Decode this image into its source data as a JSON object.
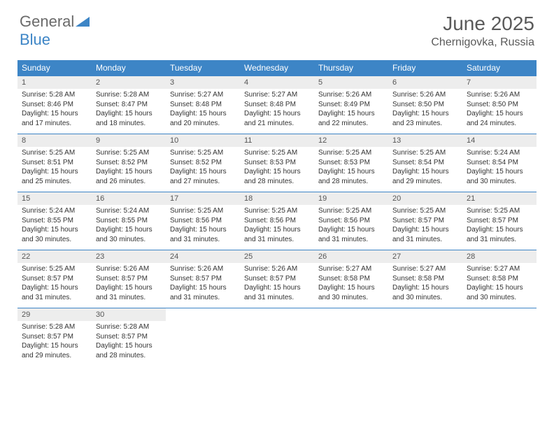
{
  "logo": {
    "word1": "General",
    "word2": "Blue"
  },
  "title": "June 2025",
  "location": "Chernigovka, Russia",
  "day_headers": [
    "Sunday",
    "Monday",
    "Tuesday",
    "Wednesday",
    "Thursday",
    "Friday",
    "Saturday"
  ],
  "colors": {
    "header_bg": "#3d85c6",
    "daynum_bg": "#ededed",
    "row_border": "#3d85c6",
    "text": "#333333",
    "title_text": "#5a5a5a"
  },
  "weeks": [
    [
      {
        "n": "1",
        "sr": "5:28 AM",
        "ss": "8:46 PM",
        "dl": "15 hours and 17 minutes."
      },
      {
        "n": "2",
        "sr": "5:28 AM",
        "ss": "8:47 PM",
        "dl": "15 hours and 18 minutes."
      },
      {
        "n": "3",
        "sr": "5:27 AM",
        "ss": "8:48 PM",
        "dl": "15 hours and 20 minutes."
      },
      {
        "n": "4",
        "sr": "5:27 AM",
        "ss": "8:48 PM",
        "dl": "15 hours and 21 minutes."
      },
      {
        "n": "5",
        "sr": "5:26 AM",
        "ss": "8:49 PM",
        "dl": "15 hours and 22 minutes."
      },
      {
        "n": "6",
        "sr": "5:26 AM",
        "ss": "8:50 PM",
        "dl": "15 hours and 23 minutes."
      },
      {
        "n": "7",
        "sr": "5:26 AM",
        "ss": "8:50 PM",
        "dl": "15 hours and 24 minutes."
      }
    ],
    [
      {
        "n": "8",
        "sr": "5:25 AM",
        "ss": "8:51 PM",
        "dl": "15 hours and 25 minutes."
      },
      {
        "n": "9",
        "sr": "5:25 AM",
        "ss": "8:52 PM",
        "dl": "15 hours and 26 minutes."
      },
      {
        "n": "10",
        "sr": "5:25 AM",
        "ss": "8:52 PM",
        "dl": "15 hours and 27 minutes."
      },
      {
        "n": "11",
        "sr": "5:25 AM",
        "ss": "8:53 PM",
        "dl": "15 hours and 28 minutes."
      },
      {
        "n": "12",
        "sr": "5:25 AM",
        "ss": "8:53 PM",
        "dl": "15 hours and 28 minutes."
      },
      {
        "n": "13",
        "sr": "5:25 AM",
        "ss": "8:54 PM",
        "dl": "15 hours and 29 minutes."
      },
      {
        "n": "14",
        "sr": "5:24 AM",
        "ss": "8:54 PM",
        "dl": "15 hours and 30 minutes."
      }
    ],
    [
      {
        "n": "15",
        "sr": "5:24 AM",
        "ss": "8:55 PM",
        "dl": "15 hours and 30 minutes."
      },
      {
        "n": "16",
        "sr": "5:24 AM",
        "ss": "8:55 PM",
        "dl": "15 hours and 30 minutes."
      },
      {
        "n": "17",
        "sr": "5:25 AM",
        "ss": "8:56 PM",
        "dl": "15 hours and 31 minutes."
      },
      {
        "n": "18",
        "sr": "5:25 AM",
        "ss": "8:56 PM",
        "dl": "15 hours and 31 minutes."
      },
      {
        "n": "19",
        "sr": "5:25 AM",
        "ss": "8:56 PM",
        "dl": "15 hours and 31 minutes."
      },
      {
        "n": "20",
        "sr": "5:25 AM",
        "ss": "8:57 PM",
        "dl": "15 hours and 31 minutes."
      },
      {
        "n": "21",
        "sr": "5:25 AM",
        "ss": "8:57 PM",
        "dl": "15 hours and 31 minutes."
      }
    ],
    [
      {
        "n": "22",
        "sr": "5:25 AM",
        "ss": "8:57 PM",
        "dl": "15 hours and 31 minutes."
      },
      {
        "n": "23",
        "sr": "5:26 AM",
        "ss": "8:57 PM",
        "dl": "15 hours and 31 minutes."
      },
      {
        "n": "24",
        "sr": "5:26 AM",
        "ss": "8:57 PM",
        "dl": "15 hours and 31 minutes."
      },
      {
        "n": "25",
        "sr": "5:26 AM",
        "ss": "8:57 PM",
        "dl": "15 hours and 31 minutes."
      },
      {
        "n": "26",
        "sr": "5:27 AM",
        "ss": "8:58 PM",
        "dl": "15 hours and 30 minutes."
      },
      {
        "n": "27",
        "sr": "5:27 AM",
        "ss": "8:58 PM",
        "dl": "15 hours and 30 minutes."
      },
      {
        "n": "28",
        "sr": "5:27 AM",
        "ss": "8:58 PM",
        "dl": "15 hours and 30 minutes."
      }
    ],
    [
      {
        "n": "29",
        "sr": "5:28 AM",
        "ss": "8:57 PM",
        "dl": "15 hours and 29 minutes."
      },
      {
        "n": "30",
        "sr": "5:28 AM",
        "ss": "8:57 PM",
        "dl": "15 hours and 28 minutes."
      },
      null,
      null,
      null,
      null,
      null
    ]
  ],
  "labels": {
    "sunrise": "Sunrise:",
    "sunset": "Sunset:",
    "daylight": "Daylight:"
  }
}
